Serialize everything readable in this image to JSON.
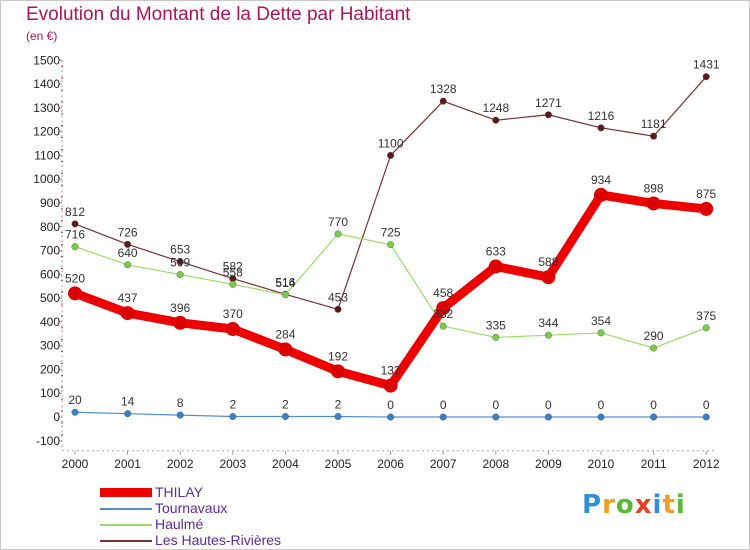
{
  "title": "Evolution du Montant de la Dette par Habitant",
  "subtitle": "(en €)",
  "logo": {
    "text": "Proxiti",
    "letters": [
      {
        "ch": "P",
        "color": "#2f8fd8"
      },
      {
        "ch": "r",
        "color": "#f0a020"
      },
      {
        "ch": "o",
        "color": "#58b838"
      },
      {
        "ch": "x",
        "color": "#e84020"
      },
      {
        "ch": "i",
        "color": "#2f8fd8"
      },
      {
        "ch": "t",
        "color": "#f0a020"
      },
      {
        "ch": "i",
        "color": "#58b838"
      }
    ]
  },
  "chart_data": {
    "type": "line",
    "x": [
      "2000",
      "2001",
      "2002",
      "2003",
      "2004",
      "2005",
      "2006",
      "2007",
      "2008",
      "2009",
      "2010",
      "2011",
      "2012"
    ],
    "ylim": [
      -100,
      1500
    ],
    "yticks": [
      -100,
      0,
      100,
      200,
      300,
      400,
      500,
      600,
      700,
      800,
      900,
      1000,
      1100,
      1200,
      1300,
      1400,
      1500
    ],
    "grid": false,
    "legend_position": "bottom-left",
    "series": [
      {
        "name": "THILAY",
        "color": "#ee0000",
        "marker": "#dd0000",
        "thick": true,
        "values": [
          520,
          437,
          396,
          370,
          284,
          192,
          132,
          458,
          633,
          588,
          934,
          898,
          875
        ],
        "labels": [
          "520",
          "437",
          "396",
          "370",
          "284",
          "192",
          "132",
          "458",
          "633",
          "588",
          "934",
          "898",
          "875"
        ]
      },
      {
        "name": "Tournavaux",
        "color": "#4f8fcf",
        "marker": "#3a7fc8",
        "thick": false,
        "values": [
          20,
          14,
          8,
          2,
          2,
          2,
          0,
          0,
          0,
          0,
          0,
          0,
          0
        ],
        "labels": [
          "20",
          "14",
          "8",
          "2",
          "2",
          "2",
          "0",
          "0",
          "0",
          "0",
          "0",
          "0",
          "0"
        ]
      },
      {
        "name": "Haulmé",
        "color": "#99dd66",
        "marker": "#7acc44",
        "thick": false,
        "values": [
          716,
          640,
          599,
          558,
          514,
          770,
          725,
          382,
          335,
          344,
          354,
          290,
          375
        ],
        "labels": [
          "716",
          "640",
          "599",
          "558",
          "514",
          "770",
          "725",
          "382",
          "335",
          "344",
          "354",
          "290",
          "375"
        ]
      },
      {
        "name": "Les Hautes-Rivières",
        "color": "#7a3030",
        "marker": "#5a1a1a",
        "thick": false,
        "values": [
          812,
          726,
          653,
          582,
          516,
          453,
          1100,
          1328,
          1248,
          1271,
          1216,
          1181,
          1431
        ],
        "labels": [
          "812",
          "726",
          "653",
          "582",
          "516",
          "453",
          "1100",
          "1328",
          "1248",
          "1271",
          "1216",
          "1181",
          "1431"
        ]
      }
    ]
  }
}
